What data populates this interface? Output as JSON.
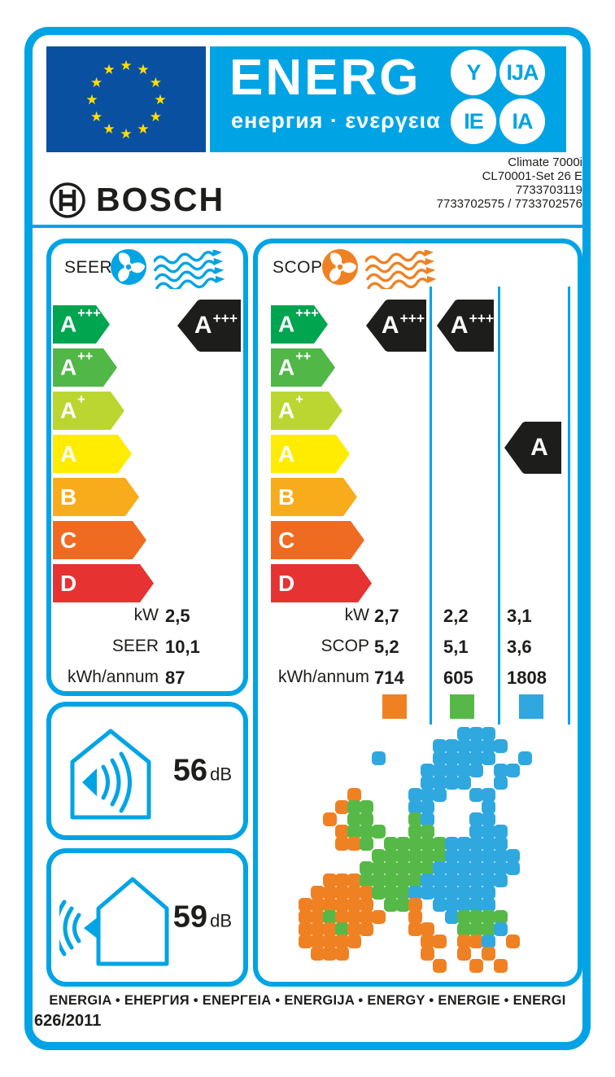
{
  "header": {
    "energ": "ENERG",
    "energ_sub": "енергия · ενεργεια",
    "suffix_circles": [
      "Y",
      "IJA",
      "IE",
      "IA"
    ]
  },
  "brand": {
    "name": "BOSCH",
    "product_lines": [
      "Climate 7000i",
      "CL70001-Set 26 E",
      "7733703119",
      "7733702575 / 7733702576"
    ]
  },
  "scale": {
    "grades": [
      {
        "label": "A+++",
        "color": "#00a550"
      },
      {
        "label": "A++",
        "color": "#51b747"
      },
      {
        "label": "A+",
        "color": "#bcd631"
      },
      {
        "label": "A",
        "color": "#ffec00"
      },
      {
        "label": "B",
        "color": "#f8ac1c"
      },
      {
        "label": "C",
        "color": "#ef6b22"
      },
      {
        "label": "D",
        "color": "#e63231"
      }
    ]
  },
  "seer_section": {
    "title": "SEER",
    "indicator": "A+++",
    "rows": [
      {
        "label": "kW",
        "value": "2,5"
      },
      {
        "label": "SEER",
        "value": "10,1"
      },
      {
        "label": "kWh/annum",
        "value": "87"
      }
    ]
  },
  "scop_section": {
    "title": "SCOP",
    "indicators": [
      "A+++",
      "A+++",
      "A"
    ],
    "rows": [
      {
        "label": "kW",
        "values": [
          "2,7",
          "2,2",
          "3,1"
        ]
      },
      {
        "label": "SCOP",
        "values": [
          "5,2",
          "5,1",
          "3,6"
        ]
      },
      {
        "label": "kWh/annum",
        "values": [
          "714",
          "605",
          "1808"
        ]
      }
    ],
    "zone_colors": [
      "#f08123",
      "#56b947",
      "#2fa8e0"
    ]
  },
  "noise": {
    "indoor": {
      "value": "56",
      "unit": "dB"
    },
    "outdoor": {
      "value": "59",
      "unit": "dB"
    }
  },
  "footer": {
    "energy_words": "ENERGIA • ЕНЕРГИЯ • ΕΝΕΡΓΕΙΑ • ENERGIJA • ENERGY • ENERGIE • ENERGI",
    "regulation": "626/2011"
  },
  "colors": {
    "accent": "#00a4e4",
    "eu_blue": "#0a50a1",
    "star_yellow": "#ffdd00",
    "arrow_black": "#1d1d1b"
  },
  "map": {
    "cell_colors": {
      "o": "#f08123",
      "g": "#56b947",
      "b": "#2fa8e0"
    },
    "grid": [
      "..............bbb.......",
      "............bbbbbb......",
      ".......b....bbbbb..b....",
      "...........bbbbb.bb.....",
      "...........bbbb..b......",
      ".....o....bbb..bb.......",
      "....ogg...bb....b.......",
      "...o.gg...gb...bb.......",
      "....oggg..gg...bbb......",
      "....oog.gggggbbbbb......",
      ".......ggggggbbbbbb.....",
      "......ggggggbbbbbbb.....",
      "...ooogggggbbbbbbb......",
      "..ooooogggbbbbbbb.......",
      ".oooooo.ggo.bbbbb.......",
      ".oogoooo..o..bgggg......",
      ".ooogoo...oo..gggb......",
      ".ooooo.....oo.oob.o.....",
      "..ooo......o..o.o.......",
      "............o..o.o......"
    ]
  }
}
